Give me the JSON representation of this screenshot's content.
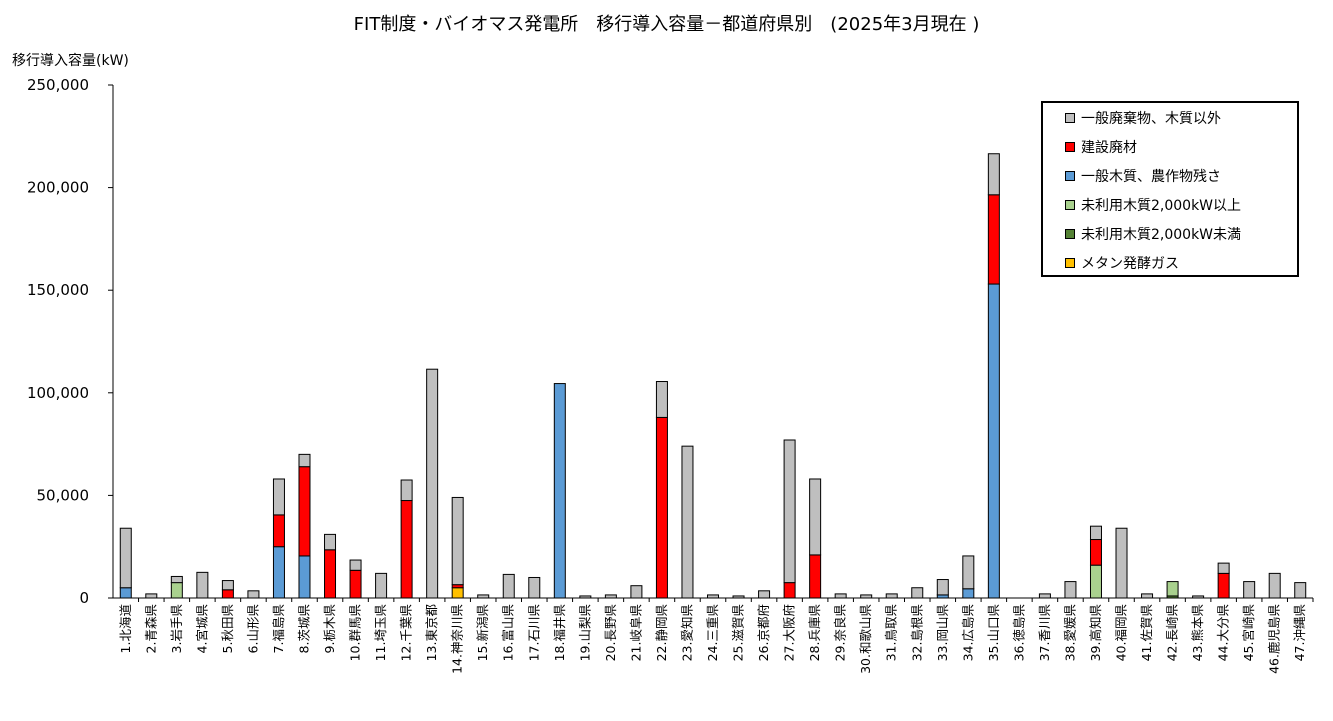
{
  "chart_data": {
    "type": "bar",
    "stacked": true,
    "title": "FIT制度・バイオマス発電所　移行導入容量－都道府県別　(2025年3月現在 )",
    "ylabel": "移行導入容量(kW)",
    "xlabel": "",
    "ylim": [
      0,
      250000
    ],
    "yticks": [
      0,
      50000,
      100000,
      150000,
      200000,
      250000
    ],
    "ytick_labels": [
      "0",
      "50,000",
      "100,000",
      "150,000",
      "200,000",
      "250,000"
    ],
    "grid": false,
    "legend_position": "top-right",
    "categories": [
      "1.北海道",
      "2.青森県",
      "3.岩手県",
      "4.宮城県",
      "5.秋田県",
      "6.山形県",
      "7.福島県",
      "8.茨城県",
      "9.栃木県",
      "10.群馬県",
      "11.埼玉県",
      "12.千葉県",
      "13.東京都",
      "14.神奈川県",
      "15.新潟県",
      "16.富山県",
      "17.石川県",
      "18.福井県",
      "19.山梨県",
      "20.長野県",
      "21.岐阜県",
      "22.静岡県",
      "23.愛知県",
      "24.三重県",
      "25.滋賀県",
      "26.京都府",
      "27.大阪府",
      "28.兵庫県",
      "29.奈良県",
      "30.和歌山県",
      "31.鳥取県",
      "32.島根県",
      "33.岡山県",
      "34.広島県",
      "35.山口県",
      "36.徳島県",
      "37.香川県",
      "38.愛媛県",
      "39.高知県",
      "40.福岡県",
      "41.佐賀県",
      "42.長崎県",
      "43.熊本県",
      "44.大分県",
      "45.宮崎県",
      "46.鹿児島県",
      "47.沖縄県"
    ],
    "series": [
      {
        "name": "メタン発酵ガス",
        "color": "#FFC000",
        "values": [
          0,
          0,
          0,
          0,
          0,
          0,
          0,
          0,
          0,
          0,
          0,
          0,
          0,
          5000,
          0,
          0,
          0,
          0,
          0,
          0,
          0,
          0,
          0,
          0,
          0,
          0,
          0,
          0,
          0,
          0,
          0,
          0,
          0,
          0,
          0,
          0,
          0,
          0,
          0,
          0,
          0,
          0,
          0,
          0,
          0,
          0,
          0
        ]
      },
      {
        "name": "未利用木質2,000kW未満",
        "color": "#548235",
        "values": [
          0,
          0,
          0,
          0,
          0,
          0,
          0,
          0,
          0,
          0,
          0,
          0,
          0,
          0,
          0,
          0,
          0,
          0,
          0,
          0,
          0,
          0,
          0,
          0,
          0,
          0,
          0,
          0,
          0,
          0,
          0,
          0,
          0,
          0,
          0,
          0,
          0,
          0,
          0,
          0,
          0,
          1000,
          0,
          0,
          0,
          0,
          0
        ]
      },
      {
        "name": "未利用木質2,000kW以上",
        "color": "#A9D18E",
        "values": [
          0,
          0,
          7500,
          0,
          0,
          0,
          0,
          0,
          0,
          0,
          0,
          0,
          0,
          0,
          0,
          0,
          0,
          0,
          0,
          0,
          0,
          0,
          0,
          0,
          0,
          0,
          0,
          0,
          0,
          0,
          0,
          0,
          0,
          0,
          0,
          0,
          0,
          0,
          16000,
          0,
          0,
          7000,
          0,
          0,
          0,
          0,
          0
        ]
      },
      {
        "name": "一般木質、農作物残さ",
        "color": "#5B9BD5",
        "values": [
          5000,
          0,
          0,
          0,
          0,
          0,
          25000,
          20500,
          0,
          0,
          0,
          0,
          0,
          0,
          0,
          0,
          0,
          104500,
          0,
          0,
          0,
          0,
          0,
          0,
          0,
          0,
          0,
          0,
          0,
          0,
          0,
          0,
          1500,
          4500,
          153000,
          0,
          0,
          0,
          0,
          0,
          0,
          0,
          0,
          0,
          0,
          0,
          0
        ]
      },
      {
        "name": "建設廃材",
        "color": "#FF0000",
        "values": [
          0,
          0,
          0,
          0,
          4000,
          0,
          15500,
          43500,
          23500,
          13500,
          0,
          47500,
          0,
          1500,
          0,
          0,
          0,
          0,
          0,
          0,
          0,
          88000,
          0,
          0,
          0,
          0,
          7500,
          21000,
          0,
          0,
          0,
          0,
          0,
          0,
          43500,
          0,
          0,
          0,
          12500,
          0,
          0,
          0,
          0,
          12000,
          0,
          0,
          0
        ]
      },
      {
        "name": "一般廃棄物、木質以外",
        "color": "#BFBFBF",
        "values": [
          29000,
          2000,
          3000,
          12500,
          4500,
          3500,
          17500,
          6000,
          7500,
          5000,
          12000,
          10000,
          111500,
          42500,
          1500,
          11500,
          10000,
          0,
          1000,
          1500,
          6000,
          17500,
          74000,
          1500,
          1000,
          3500,
          69500,
          37000,
          2000,
          1500,
          2000,
          5000,
          7500,
          16000,
          20000,
          0,
          2000,
          8000,
          6500,
          34000,
          2000,
          0,
          1000,
          5000,
          8000,
          12000,
          7500
        ]
      }
    ]
  }
}
